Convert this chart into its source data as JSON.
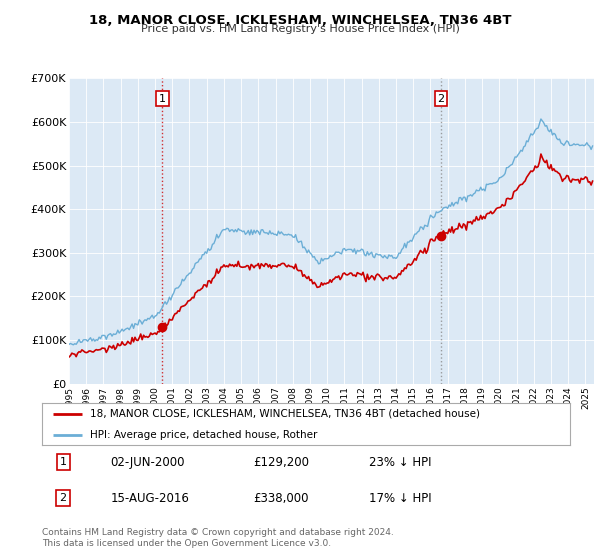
{
  "title": "18, MANOR CLOSE, ICKLESHAM, WINCHELSEA, TN36 4BT",
  "subtitle": "Price paid vs. HM Land Registry's House Price Index (HPI)",
  "plot_bg": "#dce9f5",
  "ylim": [
    0,
    700000
  ],
  "yticks": [
    0,
    100000,
    200000,
    300000,
    400000,
    500000,
    600000,
    700000
  ],
  "ytick_labels": [
    "£0",
    "£100K",
    "£200K",
    "£300K",
    "£400K",
    "£500K",
    "£600K",
    "£700K"
  ],
  "sale1_date_num": 2000.42,
  "sale1_price": 129200,
  "sale2_date_num": 2016.62,
  "sale2_price": 338000,
  "legend_line1": "18, MANOR CLOSE, ICKLESHAM, WINCHELSEA, TN36 4BT (detached house)",
  "legend_line2": "HPI: Average price, detached house, Rother",
  "annotation1": "02-JUN-2000",
  "annotation1_price": "£129,200",
  "annotation1_pct": "23% ↓ HPI",
  "annotation2": "15-AUG-2016",
  "annotation2_price": "£338,000",
  "annotation2_pct": "17% ↓ HPI",
  "footer": "Contains HM Land Registry data © Crown copyright and database right 2024.\nThis data is licensed under the Open Government Licence v3.0.",
  "hpi_color": "#6baed6",
  "price_color": "#cc0000",
  "vline1_color": "#cc0000",
  "vline2_color": "#888888"
}
